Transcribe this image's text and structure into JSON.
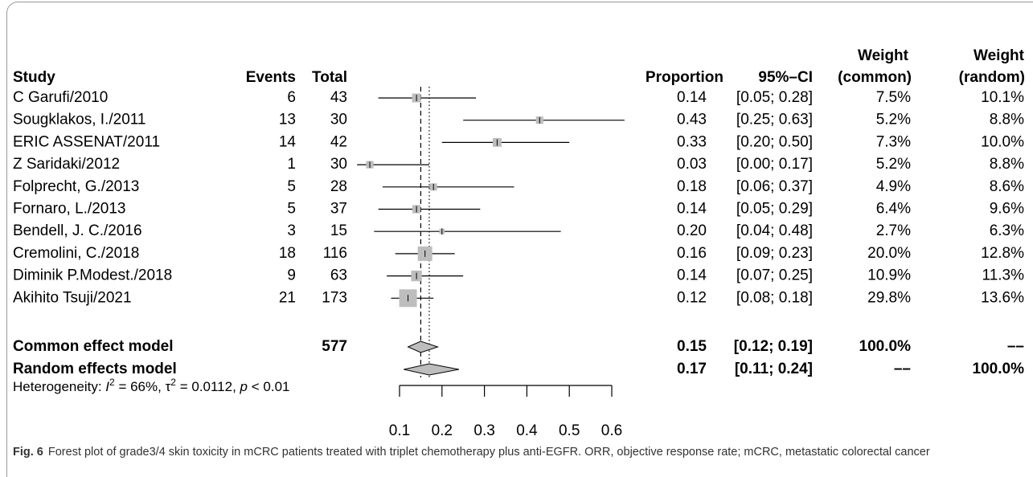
{
  "chart_data": {
    "type": "forest",
    "headers": {
      "study": "Study",
      "events": "Events",
      "total": "Total",
      "proportion": "Proportion",
      "ci": "95%–CI",
      "weight_common": [
        "Weight",
        "(common)"
      ],
      "weight_random": [
        "Weight",
        "(random)"
      ]
    },
    "categories": [
      "C Garufi/2010",
      "Sougklakos, I./2011",
      "ERIC ASSENAT/2011",
      "Z Saridaki/2012",
      "Folprecht, G./2013",
      "Fornaro, L./2013",
      "Bendell, J. C./2016",
      "Cremolini, C./2018",
      "Diminik P.Modest./2018",
      "Akihito Tsuji/2021"
    ],
    "events": [
      6,
      13,
      14,
      1,
      5,
      5,
      3,
      18,
      9,
      21
    ],
    "totals": [
      43,
      30,
      42,
      30,
      28,
      37,
      15,
      116,
      63,
      173
    ],
    "values": [
      0.14,
      0.43,
      0.33,
      0.03,
      0.18,
      0.14,
      0.2,
      0.16,
      0.14,
      0.12
    ],
    "value_labels": [
      "0.14",
      "0.43",
      "0.33",
      "0.03",
      "0.18",
      "0.14",
      "0.20",
      "0.16",
      "0.14",
      "0.12"
    ],
    "lower": [
      0.05,
      0.25,
      0.2,
      0.0,
      0.06,
      0.05,
      0.04,
      0.09,
      0.07,
      0.08
    ],
    "upper": [
      0.28,
      0.63,
      0.5,
      0.17,
      0.37,
      0.29,
      0.48,
      0.23,
      0.25,
      0.18
    ],
    "ci_labels": [
      "[0.05; 0.28]",
      "[0.25; 0.63]",
      "[0.20; 0.50]",
      "[0.00; 0.17]",
      "[0.06; 0.37]",
      "[0.05; 0.29]",
      "[0.04; 0.48]",
      "[0.09; 0.23]",
      "[0.07; 0.25]",
      "[0.08; 0.18]"
    ],
    "weights_common": [
      7.5,
      5.2,
      7.3,
      5.2,
      4.9,
      6.4,
      2.7,
      20.0,
      10.9,
      29.8
    ],
    "weights_common_labels": [
      "7.5%",
      "5.2%",
      "7.3%",
      "5.2%",
      "4.9%",
      "6.4%",
      "2.7%",
      "20.0%",
      "10.9%",
      "29.8%"
    ],
    "weights_random_labels": [
      "10.1%",
      "8.8%",
      "10.0%",
      "8.8%",
      "8.6%",
      "9.6%",
      "6.3%",
      "12.8%",
      "11.3%",
      "13.6%"
    ],
    "summary": [
      {
        "name": "Common effect model",
        "total": 577,
        "proportion": 0.15,
        "lower": 0.12,
        "upper": 0.19,
        "ci_label": "[0.12; 0.19]",
        "weight_common": "100.0%",
        "weight_random": "––"
      },
      {
        "name": "Random effects model",
        "proportion": 0.17,
        "lower": 0.11,
        "upper": 0.24,
        "ci_label": "[0.11; 0.24]",
        "weight_common": "––",
        "weight_random": "100.0%"
      }
    ],
    "heterogeneity": [
      "Heterogeneity: ",
      "I",
      "2",
      " = 66%, ",
      "τ",
      "2",
      " = 0.0112, ",
      "p",
      " < 0.01"
    ],
    "xlim": [
      0.1,
      0.6
    ],
    "xticks": [
      0.1,
      0.2,
      0.3,
      0.4,
      0.5,
      0.6
    ],
    "box_color": "#bdbdbd"
  },
  "caption": {
    "label": "Fig. 6",
    "text": "Forest plot of grade3/4 skin toxicity in mCRC patients treated with triplet chemotherapy plus anti-EGFR. ORR, objective response rate; mCRC, metastatic colorectal cancer"
  }
}
